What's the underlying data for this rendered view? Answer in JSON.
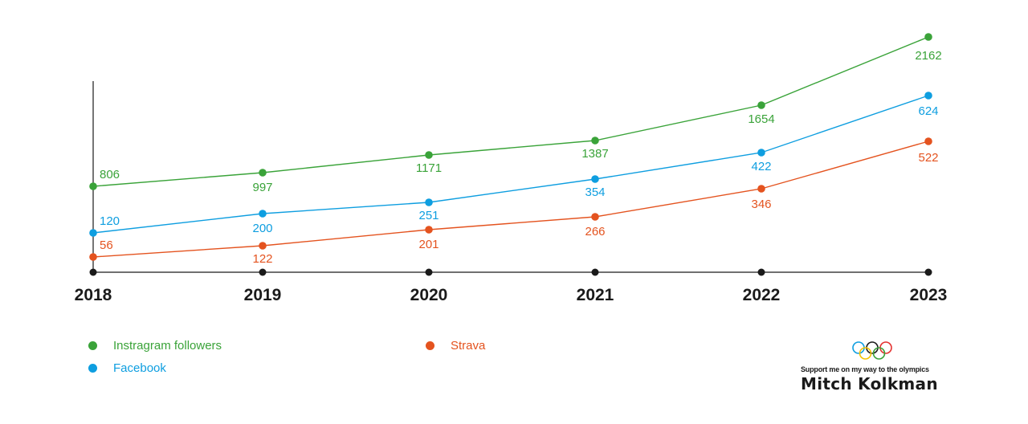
{
  "chart_data": {
    "type": "line",
    "x": [
      "2018",
      "2019",
      "2020",
      "2021",
      "2022",
      "2023"
    ],
    "series": [
      {
        "name": "Instragram followers",
        "values": [
          806,
          997,
          1171,
          1387,
          1654,
          2162
        ],
        "color": "#3aa339"
      },
      {
        "name": "Facebook",
        "values": [
          120,
          200,
          251,
          354,
          422,
          624
        ],
        "color": "#0e9ee0"
      },
      {
        "name": "Strava",
        "values": [
          56,
          122,
          201,
          266,
          346,
          522
        ],
        "color": "#e4531f"
      }
    ],
    "axis_color": "#1a1a1a",
    "legend_placement": "bottom-left",
    "grid": false
  },
  "branding": {
    "logo_icon": "olympic-rings-icon",
    "tagline": "Support me on my way to the olympics",
    "name": "Mitch Kolkman"
  }
}
